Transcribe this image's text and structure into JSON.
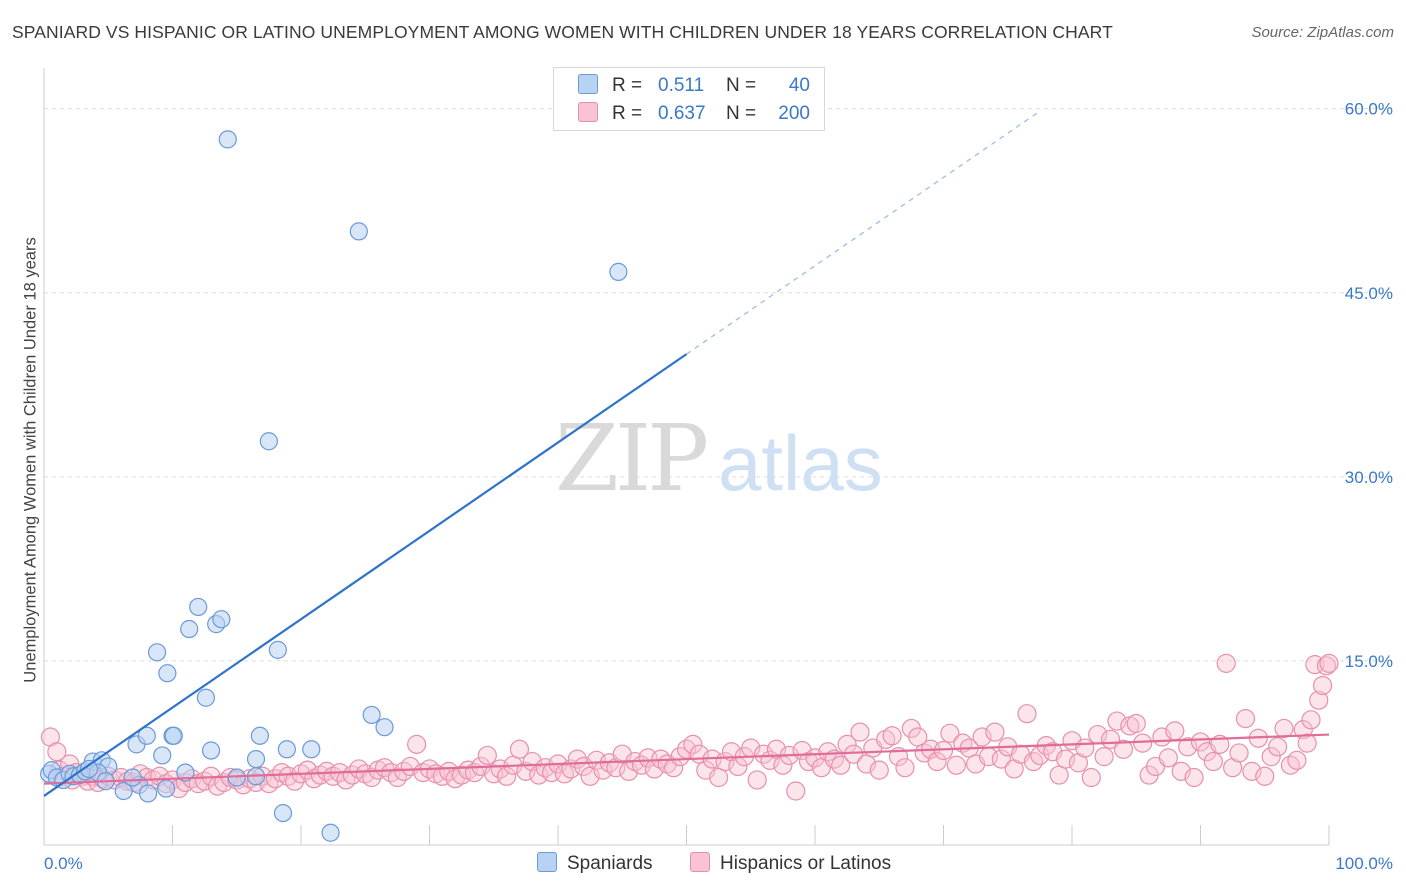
{
  "title": "SPANIARD VS HISPANIC OR LATINO UNEMPLOYMENT AMONG WOMEN WITH CHILDREN UNDER 18 YEARS CORRELATION CHART",
  "source": "Source: ZipAtlas.com",
  "watermark": {
    "zip": "ZIP",
    "atlas": "atlas"
  },
  "legend": {
    "rows": [
      {
        "r_label": "R =",
        "r_value": "0.511",
        "n_label": "N =",
        "n_value": "40"
      },
      {
        "r_label": "R =",
        "r_value": "0.637",
        "n_label": "N =",
        "n_value": "200"
      }
    ],
    "bottom": [
      "Spaniards",
      "Hispanics or Latinos"
    ]
  },
  "colors": {
    "blue_fill": "#b8d2f3",
    "blue_edge": "#6a9ad8",
    "blue_line": "#2f72cc",
    "pink_fill": "#f8c3d3",
    "pink_edge": "#e790ac",
    "pink_line": "#e06d98",
    "tick_text": "#3a78c9",
    "grid": "#dddddd"
  },
  "chart_data": {
    "type": "scatter",
    "xlabel": "",
    "ylabel": "Unemployment Among Women with Children Under 18 years",
    "xlim": [
      0,
      100
    ],
    "ylim": [
      0,
      62.5
    ],
    "x_tick_labels": [
      "0.0%",
      "100.0%"
    ],
    "y_ticks": [
      15,
      30,
      45,
      60
    ],
    "y_tick_labels": [
      "15.0%",
      "30.0%",
      "45.0%",
      "60.0%"
    ],
    "grid": "horizontal dashed",
    "legend_position": "top-center",
    "series": [
      {
        "name": "Spaniards",
        "R": 0.511,
        "N": 40,
        "trend": {
          "x0": 0,
          "y0": 4.0,
          "x1": 50,
          "y1": 40.0,
          "extend_dashed_to_x": 77.5
        },
        "points": [
          [
            0.4,
            5.8
          ],
          [
            0.6,
            6.1
          ],
          [
            1.0,
            5.5
          ],
          [
            1.5,
            5.3
          ],
          [
            2.0,
            5.8
          ],
          [
            2.3,
            5.6
          ],
          [
            2.8,
            5.7
          ],
          [
            3.2,
            6.0
          ],
          [
            3.8,
            6.8
          ],
          [
            4.5,
            6.9
          ],
          [
            5.0,
            6.4
          ],
          [
            4.2,
            5.9
          ],
          [
            3.5,
            6.2
          ],
          [
            4.8,
            5.2
          ],
          [
            6.2,
            4.4
          ],
          [
            7.4,
            4.9
          ],
          [
            8.1,
            4.2
          ],
          [
            9.5,
            4.6
          ],
          [
            6.9,
            5.5
          ],
          [
            7.2,
            8.2
          ],
          [
            8.0,
            8.9
          ],
          [
            9.2,
            7.3
          ],
          [
            10.0,
            8.9
          ],
          [
            9.6,
            14.0
          ],
          [
            8.8,
            15.7
          ],
          [
            11.0,
            5.9
          ],
          [
            12.6,
            12.0
          ],
          [
            11.3,
            17.6
          ],
          [
            12.0,
            19.4
          ],
          [
            13.4,
            18.0
          ],
          [
            13.8,
            18.4
          ],
          [
            15.0,
            5.5
          ],
          [
            16.5,
            5.6
          ],
          [
            16.8,
            8.9
          ],
          [
            16.5,
            7.0
          ],
          [
            17.5,
            32.9
          ],
          [
            18.2,
            15.9
          ],
          [
            18.6,
            2.6
          ],
          [
            20.8,
            7.8
          ],
          [
            14.3,
            57.5
          ]
        ],
        "points_extra": [
          [
            22.3,
            1.0
          ],
          [
            24.5,
            50.0
          ],
          [
            25.5,
            10.6
          ],
          [
            26.5,
            9.6
          ],
          [
            44.7,
            46.7
          ],
          [
            13.0,
            7.7
          ],
          [
            18.9,
            7.8
          ],
          [
            10.1,
            8.9
          ]
        ]
      },
      {
        "name": "Hispanics or Latinos",
        "R": 0.637,
        "N": 200,
        "trend": {
          "x0": 0,
          "y0": 5.0,
          "x1": 100,
          "y1": 9.0
        },
        "points": [
          [
            0.5,
            8.8
          ],
          [
            1.0,
            7.6
          ],
          [
            1.2,
            6.1
          ],
          [
            1.5,
            5.6
          ],
          [
            2.0,
            6.6
          ],
          [
            2.2,
            5.3
          ],
          [
            2.5,
            5.9
          ],
          [
            3.0,
            5.6
          ],
          [
            3.4,
            5.2
          ],
          [
            3.8,
            5.6
          ],
          [
            4.2,
            5.1
          ],
          [
            4.6,
            5.4
          ],
          [
            5.0,
            5.6
          ],
          [
            5.5,
            5.3
          ],
          [
            6.0,
            5.5
          ],
          [
            6.5,
            5.2
          ],
          [
            7.0,
            5.1
          ],
          [
            7.5,
            5.8
          ],
          [
            8.0,
            5.5
          ],
          [
            8.5,
            5.3
          ],
          [
            9.0,
            5.6
          ],
          [
            9.5,
            5.0
          ],
          [
            10.0,
            5.3
          ],
          [
            10.5,
            4.6
          ],
          [
            11.0,
            5.1
          ],
          [
            11.5,
            5.4
          ],
          [
            12.0,
            5.0
          ],
          [
            12.5,
            5.2
          ],
          [
            13.0,
            5.6
          ],
          [
            13.5,
            4.8
          ],
          [
            14.0,
            5.1
          ],
          [
            14.5,
            5.5
          ],
          [
            15.0,
            5.3
          ],
          [
            15.5,
            4.9
          ],
          [
            16.0,
            5.4
          ],
          [
            16.5,
            5.1
          ],
          [
            17.0,
            5.6
          ],
          [
            17.5,
            5.0
          ],
          [
            18.0,
            5.4
          ],
          [
            18.5,
            5.9
          ],
          [
            19.0,
            5.6
          ],
          [
            19.5,
            5.2
          ],
          [
            20.0,
            5.8
          ],
          [
            20.5,
            6.1
          ],
          [
            21.0,
            5.4
          ],
          [
            21.5,
            5.7
          ],
          [
            22.0,
            6.0
          ],
          [
            22.5,
            5.6
          ],
          [
            23.0,
            5.9
          ],
          [
            23.5,
            5.3
          ],
          [
            24.0,
            5.7
          ],
          [
            24.5,
            6.2
          ],
          [
            25.0,
            5.8
          ],
          [
            25.5,
            5.5
          ],
          [
            26.0,
            6.1
          ],
          [
            26.5,
            6.3
          ],
          [
            27.0,
            5.9
          ],
          [
            27.5,
            5.5
          ],
          [
            28.0,
            6.0
          ],
          [
            28.5,
            6.4
          ],
          [
            29.0,
            8.2
          ],
          [
            29.5,
            5.9
          ],
          [
            30.0,
            6.2
          ],
          [
            30.5,
            5.8
          ],
          [
            31.0,
            5.6
          ],
          [
            31.5,
            6.0
          ],
          [
            32.0,
            5.4
          ],
          [
            32.5,
            5.7
          ],
          [
            33.0,
            6.1
          ],
          [
            33.5,
            5.9
          ],
          [
            34.0,
            6.4
          ],
          [
            34.5,
            7.3
          ],
          [
            35.0,
            5.8
          ],
          [
            35.5,
            6.2
          ],
          [
            36.0,
            5.6
          ],
          [
            36.5,
            6.5
          ],
          [
            37.0,
            7.8
          ],
          [
            37.5,
            6.0
          ],
          [
            38.0,
            6.8
          ],
          [
            38.5,
            5.7
          ],
          [
            39.0,
            6.3
          ],
          [
            39.5,
            5.9
          ],
          [
            40.0,
            6.6
          ],
          [
            40.5,
            5.8
          ],
          [
            41.0,
            6.2
          ],
          [
            41.5,
            7.0
          ],
          [
            42.0,
            6.4
          ],
          [
            42.5,
            5.6
          ],
          [
            43.0,
            6.9
          ],
          [
            43.5,
            6.1
          ],
          [
            44.0,
            6.7
          ],
          [
            44.5,
            6.3
          ],
          [
            45.0,
            7.4
          ],
          [
            45.5,
            6.0
          ],
          [
            46.0,
            6.8
          ],
          [
            46.5,
            6.5
          ],
          [
            47.0,
            7.1
          ],
          [
            47.5,
            6.2
          ],
          [
            48.0,
            7.0
          ],
          [
            48.5,
            6.6
          ],
          [
            49.0,
            6.3
          ],
          [
            49.5,
            7.2
          ],
          [
            50.0,
            7.8
          ],
          [
            50.5,
            8.2
          ],
          [
            51.0,
            7.4
          ],
          [
            51.5,
            6.1
          ],
          [
            52.0,
            7.0
          ],
          [
            52.5,
            5.5
          ],
          [
            53.0,
            6.8
          ],
          [
            53.5,
            7.6
          ],
          [
            54.0,
            6.4
          ],
          [
            54.5,
            7.2
          ],
          [
            55.0,
            7.9
          ],
          [
            55.5,
            5.3
          ],
          [
            56.0,
            7.4
          ],
          [
            56.5,
            6.9
          ],
          [
            57.0,
            7.8
          ],
          [
            57.5,
            6.5
          ],
          [
            58.0,
            7.3
          ],
          [
            58.5,
            4.4
          ],
          [
            59.0,
            7.7
          ],
          [
            59.5,
            6.8
          ],
          [
            60.0,
            7.1
          ],
          [
            60.5,
            6.3
          ],
          [
            61.0,
            7.6
          ],
          [
            61.5,
            7.0
          ],
          [
            62.0,
            6.5
          ],
          [
            62.5,
            8.2
          ],
          [
            63.0,
            7.4
          ],
          [
            63.5,
            9.2
          ],
          [
            64.0,
            6.6
          ],
          [
            64.5,
            7.9
          ],
          [
            65.0,
            6.1
          ],
          [
            65.5,
            8.6
          ],
          [
            66.0,
            8.9
          ],
          [
            66.5,
            7.2
          ],
          [
            67.0,
            6.3
          ],
          [
            67.5,
            9.5
          ],
          [
            68.0,
            8.8
          ],
          [
            68.5,
            7.5
          ],
          [
            69.0,
            7.8
          ],
          [
            69.5,
            6.8
          ],
          [
            70.0,
            7.7
          ],
          [
            70.5,
            9.1
          ],
          [
            71.0,
            6.5
          ],
          [
            71.5,
            8.3
          ],
          [
            72.0,
            7.9
          ],
          [
            72.5,
            6.6
          ],
          [
            73.0,
            8.8
          ],
          [
            73.5,
            7.2
          ],
          [
            74.0,
            9.2
          ],
          [
            74.5,
            7.0
          ],
          [
            75.0,
            8.0
          ],
          [
            75.5,
            6.2
          ],
          [
            76.0,
            7.4
          ],
          [
            76.5,
            10.7
          ],
          [
            77.0,
            6.8
          ],
          [
            77.5,
            7.3
          ],
          [
            78.0,
            8.1
          ],
          [
            78.5,
            7.6
          ],
          [
            79.0,
            5.7
          ],
          [
            79.5,
            7.0
          ],
          [
            80.0,
            8.5
          ],
          [
            80.5,
            6.7
          ],
          [
            81.0,
            7.9
          ],
          [
            81.5,
            5.5
          ],
          [
            82.0,
            9.0
          ],
          [
            82.5,
            7.2
          ],
          [
            83.0,
            8.6
          ],
          [
            83.5,
            10.1
          ],
          [
            84.0,
            7.8
          ],
          [
            84.5,
            9.7
          ],
          [
            85.0,
            9.9
          ],
          [
            85.5,
            8.3
          ],
          [
            86.0,
            5.7
          ],
          [
            86.5,
            6.4
          ],
          [
            87.0,
            8.8
          ],
          [
            87.5,
            7.1
          ],
          [
            88.0,
            9.3
          ],
          [
            88.5,
            6.0
          ],
          [
            89.0,
            8.0
          ],
          [
            89.5,
            5.5
          ],
          [
            90.0,
            8.4
          ],
          [
            90.5,
            7.6
          ],
          [
            91.0,
            6.8
          ],
          [
            91.5,
            8.2
          ],
          [
            92.0,
            14.8
          ],
          [
            92.5,
            6.3
          ],
          [
            93.0,
            7.5
          ],
          [
            93.5,
            10.3
          ],
          [
            94.0,
            6.0
          ],
          [
            94.5,
            8.7
          ],
          [
            95.0,
            5.6
          ],
          [
            95.5,
            7.2
          ],
          [
            96.0,
            8.0
          ],
          [
            96.5,
            9.5
          ],
          [
            97.0,
            6.5
          ],
          [
            97.5,
            6.9
          ],
          [
            98.0,
            9.4
          ],
          [
            98.3,
            8.3
          ],
          [
            98.6,
            10.2
          ],
          [
            98.9,
            14.7
          ],
          [
            99.2,
            11.8
          ],
          [
            99.5,
            13.0
          ],
          [
            99.8,
            14.6
          ],
          [
            100.0,
            14.8
          ]
        ]
      }
    ]
  }
}
